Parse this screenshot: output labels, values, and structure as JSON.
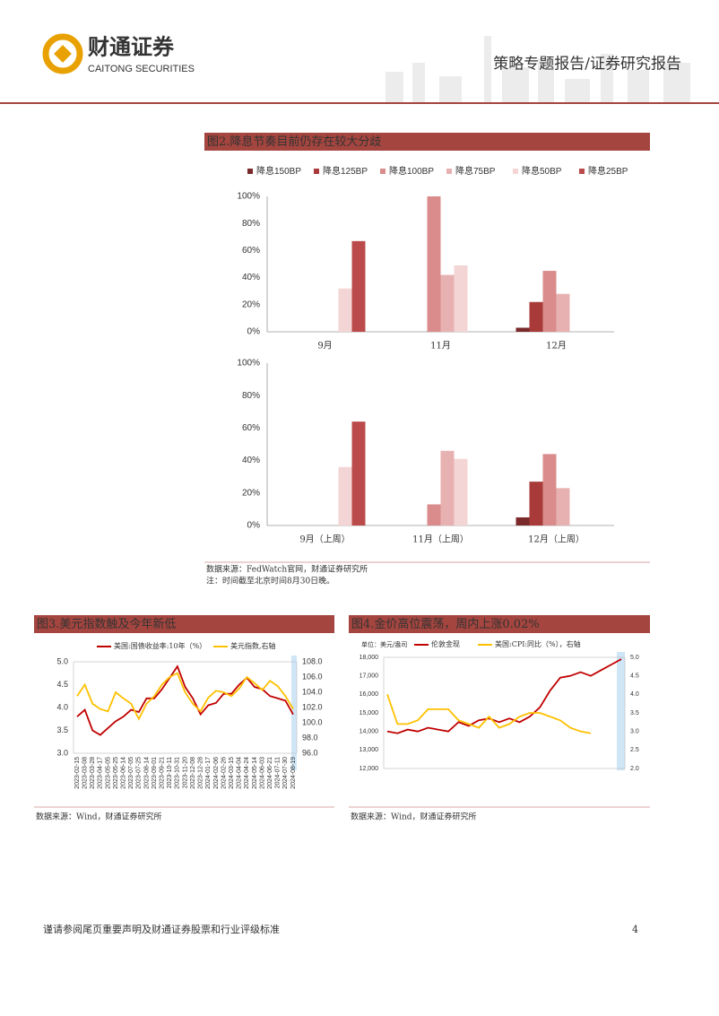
{
  "header": {
    "company_cn": "财通证券",
    "company_en": "CAITONG SECURITIES",
    "report_type": "策略专题报告/证券研究报告"
  },
  "fig2_source": "数据来源：FedWatch官网，财通证券研究所",
  "fig2_note": "注：时间截至北京时间8月30日晚。",
  "fig3_source": "数据来源：Wind，财通证券研究所",
  "fig4_source": "数据来源：Wind，财通证券研究所",
  "footer": {
    "disclaimer": "谨请参阅尾页重要声明及财通证券股票和行业评级标准",
    "page": "4"
  },
  "chart_data": [
    {
      "type": "bar",
      "title": "图2.降息节奏目前仍存在较大分歧",
      "categories": [
        "9月",
        "11月",
        "12月"
      ],
      "series": [
        {
          "name": "降息150BP",
          "color": "#7a2a2a",
          "values": [
            null,
            null,
            3
          ]
        },
        {
          "name": "降息125BP",
          "color": "#a93a3a",
          "values": [
            null,
            null,
            22
          ]
        },
        {
          "name": "降息100BP",
          "color": "#da8c8c",
          "values": [
            null,
            100,
            45
          ]
        },
        {
          "name": "降息75BP",
          "color": "#e8b1b1",
          "values": [
            null,
            42,
            28
          ]
        },
        {
          "name": "降息50BP",
          "color": "#f4d5d5",
          "values": [
            32,
            49,
            null
          ]
        },
        {
          "name": "降息25BP",
          "color": "#bb4b4b",
          "values": [
            67,
            null,
            null
          ]
        }
      ],
      "ylim": [
        0,
        100
      ],
      "yticks": [
        {
          "value": 0,
          "label": "0%"
        },
        {
          "value": 20,
          "label": "20%"
        },
        {
          "value": 40,
          "label": "40%"
        },
        {
          "value": 60,
          "label": "60%"
        },
        {
          "value": 80,
          "label": "80%"
        },
        {
          "value": 100,
          "label": "100%"
        }
      ]
    },
    {
      "type": "bar",
      "categories": [
        "9月（上周）",
        "11月（上周）",
        "12月（上周）"
      ],
      "series": [
        {
          "values": [
            null,
            null,
            5
          ]
        },
        {
          "values": [
            null,
            null,
            27
          ]
        },
        {
          "values": [
            null,
            13,
            44
          ]
        },
        {
          "values": [
            null,
            46,
            23
          ]
        },
        {
          "values": [
            36,
            41,
            null
          ]
        },
        {
          "values": [
            64,
            null,
            null
          ]
        }
      ],
      "ylim": [
        0,
        100
      ],
      "yticks": [
        {
          "value": 0,
          "label": "0%"
        },
        {
          "value": 20,
          "label": "20%"
        },
        {
          "value": 40,
          "label": "40%"
        },
        {
          "value": 60,
          "label": "60%"
        },
        {
          "value": 80,
          "label": "80%"
        },
        {
          "value": 100,
          "label": "100%"
        }
      ]
    },
    {
      "type": "line",
      "title": "图3.美元指数触及今年新低",
      "categories": [
        "2023-02-15",
        "2023-03-08",
        "2023-03-28",
        "2023-04-17",
        "2023-05-05",
        "2023-05-25",
        "2023-06-14",
        "2023-07-05",
        "2023-07-25",
        "2023-08-14",
        "2023-09-01",
        "2023-09-21",
        "2023-10-11",
        "2023-10-31",
        "2023-11-20",
        "2023-12-08",
        "2023-12-28",
        "2024-01-17",
        "2024-02-06",
        "2024-02-26",
        "2024-03-15",
        "2024-04-04",
        "2024-04-24",
        "2024-05-14",
        "2024-06-03",
        "2024-06-21",
        "2024-07-11",
        "2024-07-30",
        "2024-08-19"
      ],
      "series": [
        {
          "name": "美国:国债收益率:10年（%）",
          "color": "#c00000",
          "values": [
            3.8,
            3.95,
            3.5,
            3.4,
            3.55,
            3.7,
            3.8,
            3.95,
            3.9,
            4.2,
            4.2,
            4.4,
            4.65,
            4.9,
            4.45,
            4.2,
            3.85,
            4.05,
            4.1,
            4.3,
            4.3,
            4.5,
            4.65,
            4.45,
            4.4,
            4.25,
            4.2,
            4.15,
            3.85
          ]
        },
        {
          "name": "美元指数,右轴",
          "color": "#ffc000",
          "axis": "y2",
          "values": [
            103.5,
            105,
            102.5,
            101.8,
            101.5,
            104,
            103.2,
            102.5,
            100.5,
            102.5,
            103.5,
            105,
            106,
            106.5,
            104,
            102.5,
            101.5,
            103.3,
            104.2,
            104,
            103.5,
            104.5,
            106,
            105.2,
            104.3,
            105.5,
            104.8,
            103.5,
            101.8
          ]
        }
      ],
      "ylim": [
        3,
        5
      ],
      "yticks": [
        {
          "value": 3,
          "label": "3.0"
        },
        3.5,
        {
          "value": 4,
          "label": "4.0"
        },
        4.5,
        {
          "value": 5,
          "label": "5.0"
        }
      ],
      "y2lim": [
        96,
        108
      ],
      "y2ticks": [
        {
          "value": 96,
          "label": "96.0"
        },
        {
          "value": 98,
          "label": "98.0"
        },
        {
          "value": 100,
          "label": "100.0"
        },
        {
          "value": 102,
          "label": "102.0"
        },
        {
          "value": 104,
          "label": "104.0"
        },
        {
          "value": 106,
          "label": "106.0"
        },
        {
          "value": 108,
          "label": "108.0"
        }
      ]
    },
    {
      "type": "line",
      "title": "图4.金价高位震荡，周内上涨0.02%",
      "unit_label": "单位：美元/盎司",
      "series": [
        {
          "name": "伦敦金现",
          "color": "#c00000",
          "values": [
            14000,
            13900,
            14100,
            14000,
            14200,
            14100,
            14000,
            14500,
            14300,
            14600,
            14700,
            14500,
            14700,
            14500,
            14800,
            15300,
            16200,
            16900,
            17000,
            17200,
            17000,
            17300,
            17600,
            17900
          ]
        },
        {
          "name": "美国:CPI:同比（%），右轴",
          "color": "#ffc000",
          "axis": "y2",
          "values": [
            4.0,
            3.2,
            3.2,
            3.3,
            3.6,
            3.6,
            3.6,
            3.3,
            3.2,
            3.1,
            3.4,
            3.1,
            3.2,
            3.4,
            3.5,
            3.5,
            3.4,
            3.3,
            3.1,
            3.0,
            2.95,
            null,
            null,
            null
          ]
        }
      ],
      "ylim": [
        12000,
        18000
      ],
      "yticks": [
        {
          "value": 12000,
          "label": "12,000"
        },
        {
          "value": 13000,
          "label": "13,000"
        },
        {
          "value": 14000,
          "label": "14,000"
        },
        {
          "value": 15000,
          "label": "15,000"
        },
        {
          "value": 16000,
          "label": "16,000"
        },
        {
          "value": 17000,
          "label": "17,000"
        },
        {
          "value": 18000,
          "label": "18,000"
        }
      ],
      "y2lim": [
        2,
        5
      ],
      "y2ticks": [
        {
          "value": 2,
          "label": "2.0"
        },
        2.5,
        {
          "value": 3,
          "label": "3.0"
        },
        3.5,
        {
          "value": 4,
          "label": "4.0"
        },
        4.5,
        {
          "value": 5,
          "label": "5.0"
        }
      ]
    }
  ]
}
